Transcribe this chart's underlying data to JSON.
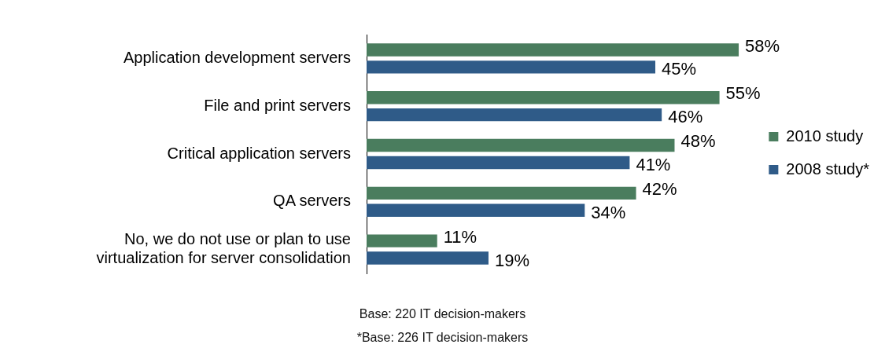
{
  "chart_data": {
    "type": "bar",
    "orientation": "horizontal",
    "categories": [
      "Application development servers",
      "File and print servers",
      "Critical application servers",
      "QA servers",
      "No, we do not use or plan to use virtualization for server consolidation"
    ],
    "series": [
      {
        "name": "2010 study",
        "color": "#4a7d5e",
        "values": [
          58,
          55,
          48,
          42,
          11
        ],
        "value_labels": [
          "58%",
          "55%",
          "48%",
          "42%",
          "11%"
        ]
      },
      {
        "name": "2008 study*",
        "color": "#2f5b88",
        "values": [
          45,
          46,
          41,
          34,
          19
        ],
        "value_labels": [
          "45%",
          "46%",
          "41%",
          "34%",
          "19%"
        ]
      }
    ],
    "legend": "right",
    "grid": false,
    "tick_labels": "y",
    "annotations": [
      "Base: 220 IT decision-makers",
      "*Base: 226 IT decision-makers"
    ]
  }
}
